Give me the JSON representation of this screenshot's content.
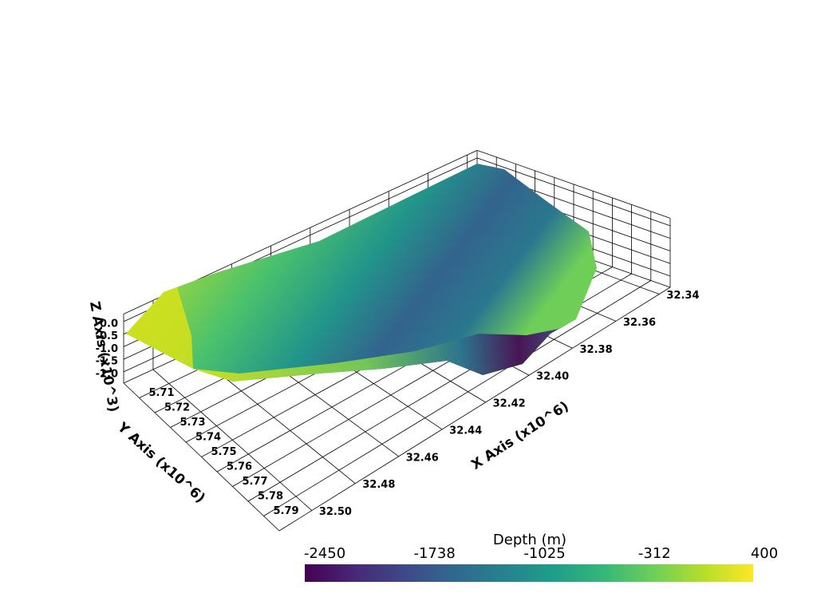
{
  "chart_data": {
    "type": "surface3d",
    "x_label": "X Axis (x10^6)",
    "y_label": "Y Axis (x10^6)",
    "z_label": "Z Axis (x10^3)",
    "xlim": [
      32.335,
      32.515
    ],
    "ylim": [
      5.7,
      5.8
    ],
    "zlim": [
      -2.45,
      0.3
    ],
    "xticks": [
      32.34,
      32.36,
      32.38,
      {
        "value": 32.4,
        "label": "32.40"
      },
      32.42,
      32.44,
      32.46,
      32.48,
      {
        "value": 32.5,
        "label": "32.50"
      }
    ],
    "yticks": [
      5.71,
      5.72,
      5.73,
      5.74,
      5.75,
      5.76,
      5.77,
      5.78,
      5.79
    ],
    "zticks": [
      {
        "value": 0,
        "label": "0.0"
      },
      -0.5,
      {
        "value": -1,
        "label": "-1.0"
      },
      -1.5,
      {
        "value": -2,
        "label": "-2.0"
      }
    ],
    "grid": true,
    "grid_color": "#000000",
    "colorbar": {
      "title": "Depth (m)",
      "lim": [
        -2450,
        400
      ],
      "ticks": [
        -2450,
        -1738,
        -1025,
        -312,
        400
      ],
      "colormap": "viridis"
    }
  }
}
